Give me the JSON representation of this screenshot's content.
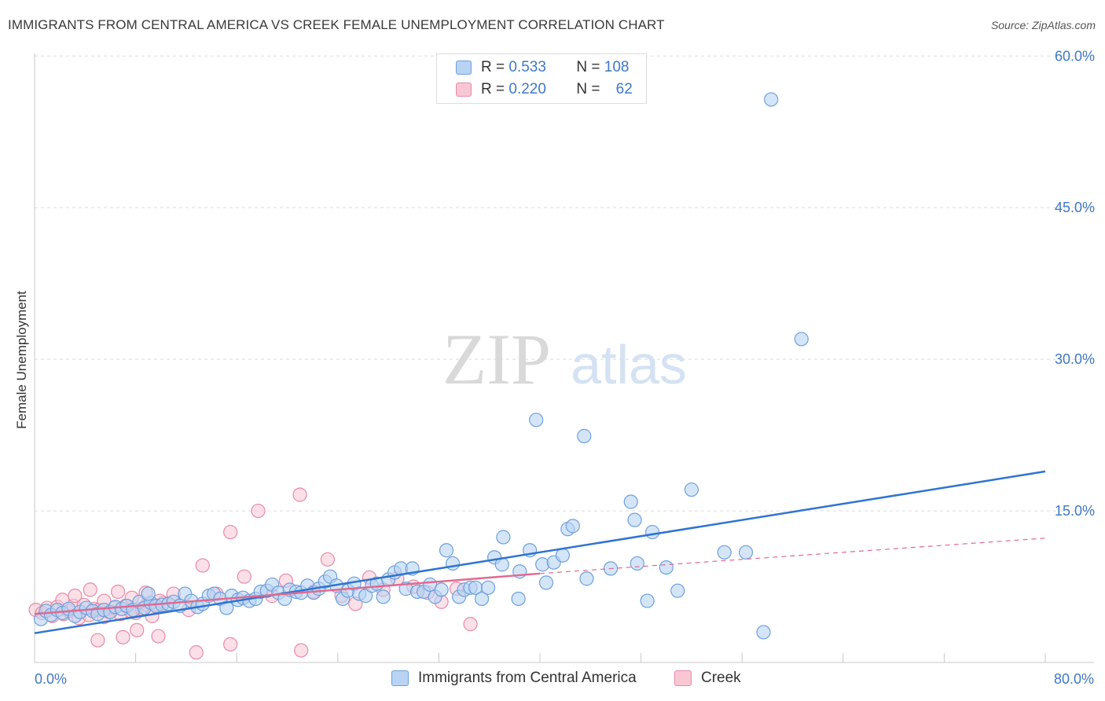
{
  "title": "IMMIGRANTS FROM CENTRAL AMERICA VS CREEK FEMALE UNEMPLOYMENT CORRELATION CHART",
  "source": "Source: ZipAtlas.com",
  "watermark": {
    "zip": "ZIP",
    "atlas": "atlas"
  },
  "legend": {
    "rows": [
      {
        "r_label": "R =",
        "r_value": "0.533",
        "n_label": "N =",
        "n_value": "108"
      },
      {
        "r_label": "R =",
        "r_value": "0.220",
        "n_label": "N =",
        "n_value": "62"
      }
    ]
  },
  "colors": {
    "blue_fill": "#b8d3f3",
    "blue_stroke": "#6fa0dc",
    "blue_line": "#2f74d0",
    "pink_fill": "#f9c6d4",
    "pink_stroke": "#e88aa6",
    "pink_line": "#e06a90",
    "tick_label": "#3f78c7",
    "grid": "#dcdcdc"
  },
  "chart_data": {
    "type": "scatter",
    "title": "IMMIGRANTS FROM CENTRAL AMERICA VS CREEK FEMALE UNEMPLOYMENT CORRELATION CHART",
    "xlabel": "",
    "ylabel": "Female Unemployment",
    "xlim": [
      0,
      80
    ],
    "ylim": [
      0,
      63
    ],
    "x_tick_labels": [
      "0.0%",
      "80.0%"
    ],
    "y_ticks": [
      15,
      30,
      45,
      60
    ],
    "y_tick_labels": [
      "15.0%",
      "30.0%",
      "45.0%",
      "60.0%"
    ],
    "grid": true,
    "legend_position": "top-center",
    "series": [
      {
        "name": "Immigrants from Central America",
        "trend": {
          "x": [
            0,
            80
          ],
          "y": [
            2.9,
            18.9
          ]
        },
        "points": [
          [
            0.5,
            4.3
          ],
          [
            0.9,
            5.1
          ],
          [
            1.3,
            4.7
          ],
          [
            1.8,
            5.2
          ],
          [
            2.2,
            4.9
          ],
          [
            2.7,
            5.3
          ],
          [
            3.2,
            4.6
          ],
          [
            3.6,
            5.0
          ],
          [
            4.1,
            5.4
          ],
          [
            4.6,
            5.1
          ],
          [
            5.0,
            4.8
          ],
          [
            5.5,
            5.2
          ],
          [
            6.0,
            5.0
          ],
          [
            6.4,
            5.5
          ],
          [
            6.9,
            5.3
          ],
          [
            7.3,
            5.6
          ],
          [
            7.8,
            5.2
          ],
          [
            8.3,
            6.0
          ],
          [
            8.7,
            5.4
          ],
          [
            9.2,
            5.9
          ],
          [
            9.0,
            6.8
          ],
          [
            9.6,
            5.6
          ],
          [
            10.1,
            5.7
          ],
          [
            10.6,
            5.8
          ],
          [
            11.0,
            6.0
          ],
          [
            11.5,
            5.6
          ],
          [
            11.9,
            6.8
          ],
          [
            12.4,
            6.1
          ],
          [
            12.9,
            5.5
          ],
          [
            13.3,
            5.8
          ],
          [
            13.8,
            6.6
          ],
          [
            14.2,
            6.8
          ],
          [
            14.7,
            6.3
          ],
          [
            15.2,
            5.4
          ],
          [
            15.6,
            6.6
          ],
          [
            16.1,
            6.2
          ],
          [
            16.5,
            6.4
          ],
          [
            17.0,
            6.1
          ],
          [
            17.5,
            6.3
          ],
          [
            17.9,
            7.0
          ],
          [
            18.4,
            7.1
          ],
          [
            18.8,
            7.7
          ],
          [
            19.3,
            6.9
          ],
          [
            19.8,
            6.3
          ],
          [
            20.2,
            7.2
          ],
          [
            20.7,
            7.0
          ],
          [
            21.1,
            6.9
          ],
          [
            21.6,
            7.6
          ],
          [
            22.1,
            6.9
          ],
          [
            22.5,
            7.3
          ],
          [
            23.0,
            8.0
          ],
          [
            23.4,
            8.5
          ],
          [
            23.9,
            7.6
          ],
          [
            24.4,
            6.3
          ],
          [
            24.8,
            7.1
          ],
          [
            25.3,
            7.8
          ],
          [
            25.7,
            6.8
          ],
          [
            26.2,
            6.6
          ],
          [
            26.7,
            7.6
          ],
          [
            27.1,
            7.8
          ],
          [
            27.6,
            6.5
          ],
          [
            28.0,
            8.2
          ],
          [
            28.5,
            8.9
          ],
          [
            29.0,
            9.3
          ],
          [
            29.4,
            7.3
          ],
          [
            29.9,
            9.3
          ],
          [
            30.3,
            7.0
          ],
          [
            30.8,
            7.0
          ],
          [
            31.3,
            7.7
          ],
          [
            31.7,
            6.5
          ],
          [
            32.2,
            7.2
          ],
          [
            32.6,
            11.1
          ],
          [
            33.1,
            9.8
          ],
          [
            33.6,
            6.5
          ],
          [
            34.0,
            7.2
          ],
          [
            34.5,
            7.4
          ],
          [
            34.9,
            7.4
          ],
          [
            35.4,
            6.3
          ],
          [
            35.9,
            7.4
          ],
          [
            36.4,
            10.4
          ],
          [
            37.1,
            12.4
          ],
          [
            37.0,
            9.7
          ],
          [
            38.3,
            6.3
          ],
          [
            38.4,
            9.0
          ],
          [
            39.2,
            11.1
          ],
          [
            39.7,
            24.0
          ],
          [
            40.2,
            9.7
          ],
          [
            40.5,
            7.9
          ],
          [
            41.1,
            9.9
          ],
          [
            41.8,
            10.6
          ],
          [
            42.2,
            13.2
          ],
          [
            42.6,
            13.5
          ],
          [
            43.5,
            22.4
          ],
          [
            43.7,
            8.3
          ],
          [
            45.6,
            9.3
          ],
          [
            47.2,
            15.9
          ],
          [
            47.5,
            14.1
          ],
          [
            47.7,
            9.8
          ],
          [
            48.5,
            6.1
          ],
          [
            48.9,
            12.9
          ],
          [
            50.0,
            9.4
          ],
          [
            50.9,
            7.1
          ],
          [
            52.0,
            17.1
          ],
          [
            54.6,
            10.9
          ],
          [
            56.3,
            10.9
          ],
          [
            57.7,
            3.0
          ],
          [
            58.3,
            55.7
          ],
          [
            60.7,
            32.0
          ]
        ]
      },
      {
        "name": "Creek",
        "trend": {
          "x": [
            0,
            40
          ],
          "y": [
            4.8,
            8.8
          ]
        },
        "trend_extension": {
          "x": [
            40,
            80
          ],
          "y": [
            8.8,
            12.3
          ]
        },
        "points": [
          [
            0.1,
            5.2
          ],
          [
            0.6,
            4.9
          ],
          [
            1.0,
            5.4
          ],
          [
            1.4,
            4.6
          ],
          [
            1.8,
            5.5
          ],
          [
            2.3,
            4.8
          ],
          [
            2.7,
            5.1
          ],
          [
            3.1,
            5.6
          ],
          [
            3.5,
            4.4
          ],
          [
            3.9,
            5.7
          ],
          [
            4.3,
            4.7
          ],
          [
            4.7,
            5.3
          ],
          [
            5.1,
            5.2
          ],
          [
            5.5,
            4.5
          ],
          [
            5.9,
            5.0
          ],
          [
            6.3,
            5.4
          ],
          [
            6.8,
            4.8
          ],
          [
            7.2,
            5.6
          ],
          [
            7.6,
            5.1
          ],
          [
            8.0,
            4.9
          ],
          [
            8.5,
            5.3
          ],
          [
            8.9,
            5.7
          ],
          [
            9.3,
            4.6
          ],
          [
            9.7,
            5.5
          ],
          [
            10.2,
            5.9
          ],
          [
            2.2,
            6.2
          ],
          [
            3.2,
            6.6
          ],
          [
            4.4,
            7.2
          ],
          [
            5.5,
            6.1
          ],
          [
            6.6,
            7.0
          ],
          [
            7.7,
            6.4
          ],
          [
            8.8,
            6.9
          ],
          [
            9.9,
            6.1
          ],
          [
            11.0,
            6.8
          ],
          [
            12.2,
            5.2
          ],
          [
            13.3,
            9.6
          ],
          [
            14.4,
            6.8
          ],
          [
            15.5,
            12.9
          ],
          [
            16.6,
            8.5
          ],
          [
            17.7,
            15.0
          ],
          [
            18.8,
            6.6
          ],
          [
            19.9,
            8.1
          ],
          [
            21.0,
            16.6
          ],
          [
            22.1,
            7.0
          ],
          [
            23.2,
            10.2
          ],
          [
            24.3,
            6.6
          ],
          [
            25.4,
            5.8
          ],
          [
            26.5,
            8.4
          ],
          [
            27.6,
            7.2
          ],
          [
            28.7,
            8.3
          ],
          [
            30.0,
            7.5
          ],
          [
            31.1,
            6.9
          ],
          [
            32.2,
            6.0
          ],
          [
            33.4,
            7.3
          ],
          [
            34.5,
            3.8
          ],
          [
            5.0,
            2.2
          ],
          [
            7.0,
            2.5
          ],
          [
            8.1,
            3.2
          ],
          [
            9.8,
            2.6
          ],
          [
            12.8,
            1.0
          ],
          [
            15.5,
            1.8
          ],
          [
            21.1,
            1.2
          ]
        ]
      }
    ]
  }
}
